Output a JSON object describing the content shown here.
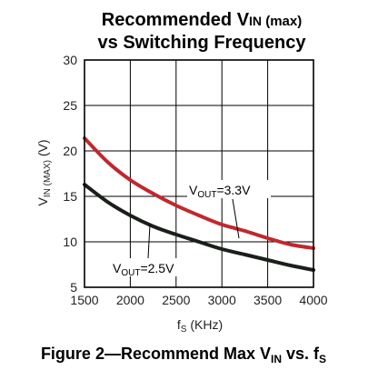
{
  "chart_data": {
    "type": "line",
    "title": {
      "line1": {
        "main": "Recommended V",
        "sub": "IN",
        "tail": " (max)"
      },
      "line2": "vs Switching Frequency"
    },
    "xlabel": {
      "main": "f",
      "sub": "S",
      "tail": " (KHz)"
    },
    "ylabel": {
      "main": "V",
      "sub": "IN (MAX)",
      "tail": " (V)"
    },
    "xlim": [
      1500,
      4000
    ],
    "ylim": [
      5,
      30
    ],
    "x_ticks": [
      1500,
      2000,
      2500,
      3000,
      3500,
      4000
    ],
    "y_ticks": [
      5,
      10,
      15,
      20,
      25,
      30
    ],
    "grid": true,
    "colors": {
      "vout_3v3": "#c0282d",
      "vout_2v5": "#1a1f1a",
      "grid": "#000000"
    },
    "series": [
      {
        "key": "vout_3v3",
        "label": {
          "main": "V",
          "sub": "OUT",
          "tail": "=3.3V"
        },
        "x": [
          1500,
          1750,
          2000,
          2250,
          2500,
          2750,
          3000,
          3250,
          3500,
          3750,
          4000
        ],
        "y": [
          21.4,
          18.8,
          16.8,
          15.3,
          14.0,
          12.9,
          11.9,
          11.2,
          10.4,
          9.7,
          9.3
        ]
      },
      {
        "key": "vout_2v5",
        "label": {
          "main": "V",
          "sub": "OUT",
          "tail": "=2.5V"
        },
        "x": [
          1500,
          1750,
          2000,
          2250,
          2500,
          2750,
          3000,
          3250,
          3500,
          3750,
          4000
        ],
        "y": [
          16.3,
          14.4,
          12.9,
          11.7,
          10.8,
          10.0,
          9.2,
          8.6,
          8.0,
          7.4,
          6.9
        ]
      }
    ],
    "caption": {
      "main": "Figure 2—Recommend Max V",
      "sub1": "IN",
      "mid": " vs. f",
      "sub2": "S"
    }
  }
}
